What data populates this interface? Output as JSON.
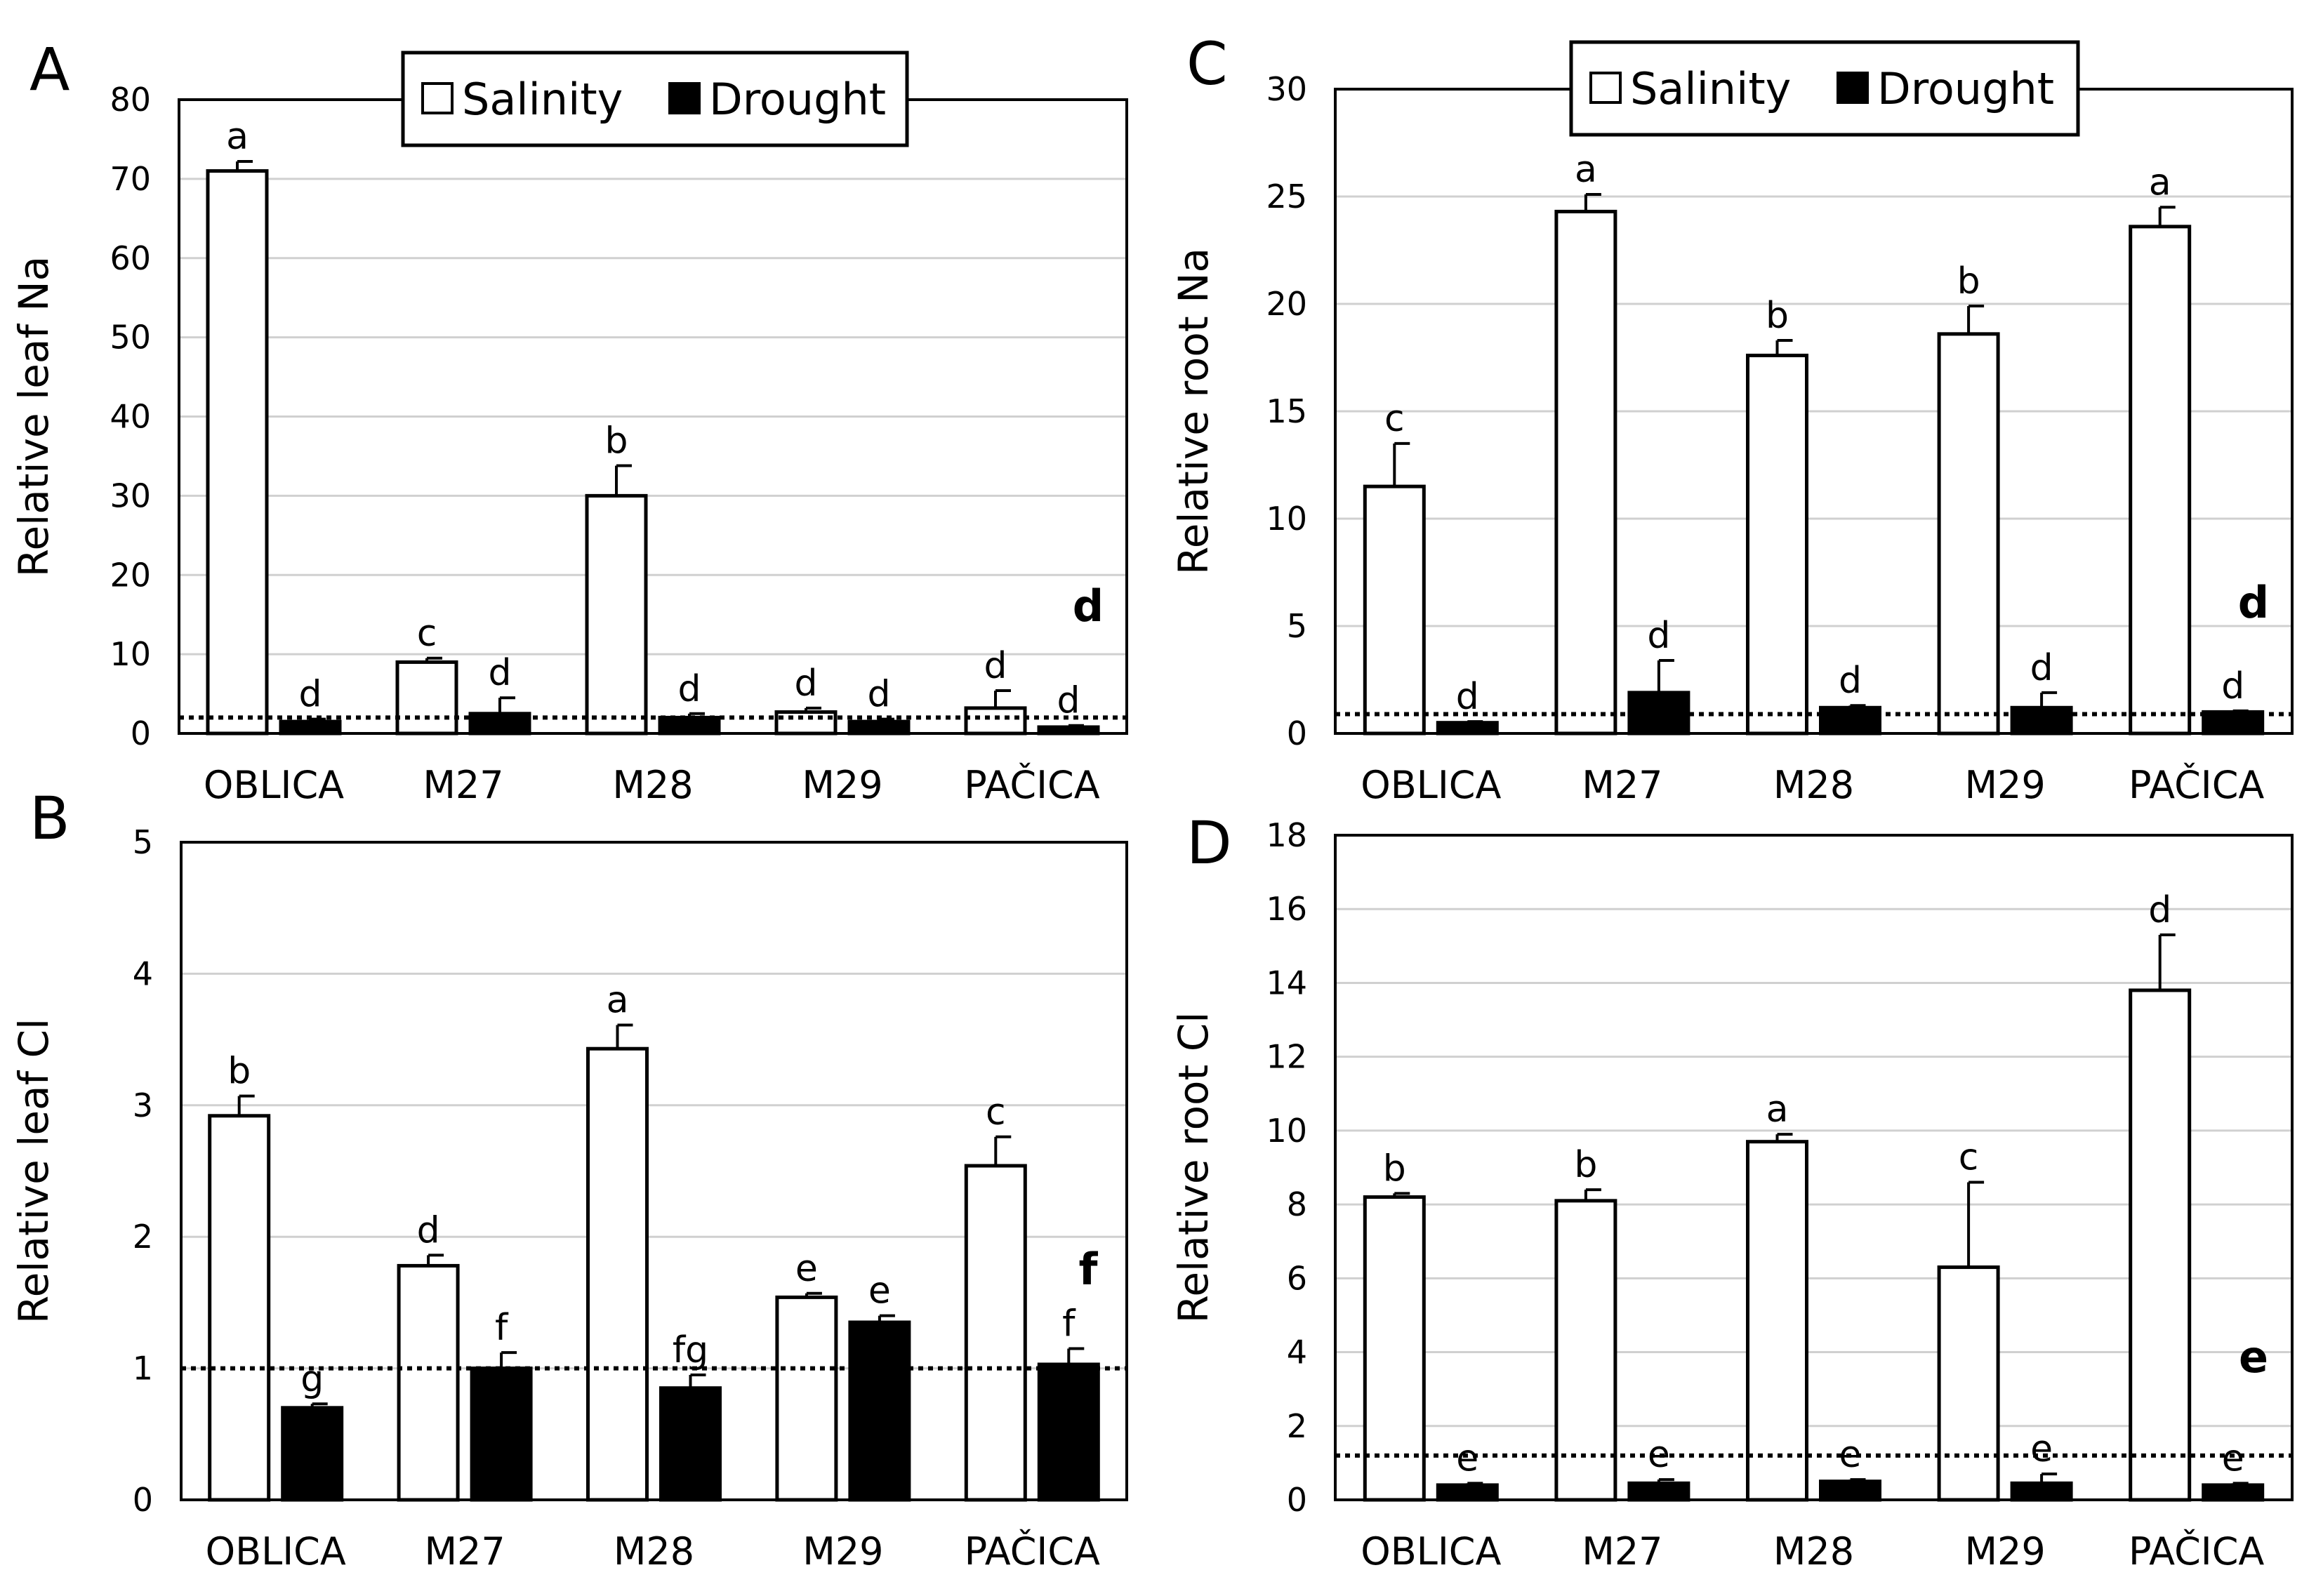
{
  "chart_data": [
    {
      "panel": "A",
      "type": "bar",
      "ylabel": "Relative leaf Na",
      "ylim": [
        0,
        80
      ],
      "yticks": [
        0,
        10,
        20,
        30,
        40,
        50,
        60,
        70,
        80
      ],
      "categories": [
        "OBLICA",
        "M27",
        "M28",
        "M29",
        "PAČICA"
      ],
      "reference_line": 2,
      "legend": {
        "position": "top-center",
        "entries": [
          "Salinity",
          "Drought"
        ]
      },
      "series": [
        {
          "name": "Salinity",
          "color": "#ffffff",
          "values": [
            71,
            9,
            30,
            2.7,
            3.2
          ],
          "errors": [
            1.2,
            0.5,
            3.8,
            0.5,
            2.2
          ],
          "letters": [
            "a",
            "c",
            "b",
            "d",
            "d"
          ]
        },
        {
          "name": "Drought",
          "color": "#000000",
          "values": [
            1.5,
            2.5,
            2,
            1.5,
            0.8
          ],
          "errors": [
            0.3,
            2,
            0.5,
            0.3,
            0.2
          ],
          "letters": [
            "d",
            "d",
            "d",
            "d",
            "d"
          ]
        }
      ],
      "corner_letter": "d"
    },
    {
      "panel": "B",
      "type": "bar",
      "ylabel": "Relative leaf Cl",
      "ylim": [
        0,
        5
      ],
      "yticks": [
        0,
        1,
        2,
        3,
        4,
        5
      ],
      "categories": [
        "OBLICA",
        "M27",
        "M28",
        "M29",
        "PAČICA"
      ],
      "reference_line": 1,
      "series": [
        {
          "name": "Salinity",
          "color": "#ffffff",
          "values": [
            2.92,
            1.78,
            3.43,
            1.54,
            2.54
          ],
          "errors": [
            0.15,
            0.08,
            0.18,
            0.03,
            0.22
          ],
          "letters": [
            "b",
            "d",
            "a",
            "e",
            "c"
          ]
        },
        {
          "name": "Drought",
          "color": "#000000",
          "values": [
            0.7,
            1.0,
            0.85,
            1.35,
            1.03
          ],
          "errors": [
            0.03,
            0.12,
            0.1,
            0.05,
            0.12
          ],
          "letters": [
            "g",
            "f",
            "fg",
            "e",
            "f"
          ]
        }
      ],
      "corner_letter": "f"
    },
    {
      "panel": "C",
      "type": "bar",
      "ylabel": "Relative root Na",
      "ylim": [
        0,
        30
      ],
      "yticks": [
        0,
        5,
        10,
        15,
        20,
        25,
        30
      ],
      "categories": [
        "OBLICA",
        "M27",
        "M28",
        "M29",
        "PAČICA"
      ],
      "reference_line": 0.9,
      "legend": {
        "position": "top-center",
        "entries": [
          "Salinity",
          "Drought"
        ]
      },
      "series": [
        {
          "name": "Salinity",
          "color": "#ffffff",
          "values": [
            11.5,
            24.3,
            17.6,
            18.6,
            23.6
          ],
          "errors": [
            2.0,
            0.8,
            0.7,
            1.3,
            0.9
          ],
          "letters": [
            "c",
            "a",
            "b",
            "b",
            "a"
          ]
        },
        {
          "name": "Drought",
          "color": "#000000",
          "values": [
            0.5,
            1.9,
            1.2,
            1.2,
            1.0
          ],
          "errors": [
            0.05,
            1.5,
            0.1,
            0.7,
            0.05
          ],
          "letters": [
            "d",
            "d",
            "d",
            "d",
            "d"
          ]
        }
      ],
      "corner_letter": "d"
    },
    {
      "panel": "D",
      "type": "bar",
      "ylabel": "Relative root Cl",
      "ylim": [
        0,
        18
      ],
      "yticks": [
        0,
        2,
        4,
        6,
        8,
        10,
        12,
        14,
        16,
        18
      ],
      "categories": [
        "OBLICA",
        "M27",
        "M28",
        "M29",
        "PAČICA"
      ],
      "reference_line": 1.2,
      "series": [
        {
          "name": "Salinity",
          "color": "#ffffff",
          "values": [
            8.2,
            8.1,
            9.7,
            6.3,
            13.8
          ],
          "errors": [
            0.1,
            0.3,
            0.2,
            2.3,
            1.5
          ],
          "letters": [
            "b",
            "b",
            "a",
            "c",
            "d"
          ]
        },
        {
          "name": "Drought",
          "color": "#000000",
          "values": [
            0.4,
            0.45,
            0.5,
            0.45,
            0.4
          ],
          "errors": [
            0.05,
            0.1,
            0.05,
            0.25,
            0.05
          ],
          "letters": [
            "e",
            "e",
            "e",
            "e",
            "e"
          ]
        }
      ],
      "corner_letter": "e"
    }
  ]
}
